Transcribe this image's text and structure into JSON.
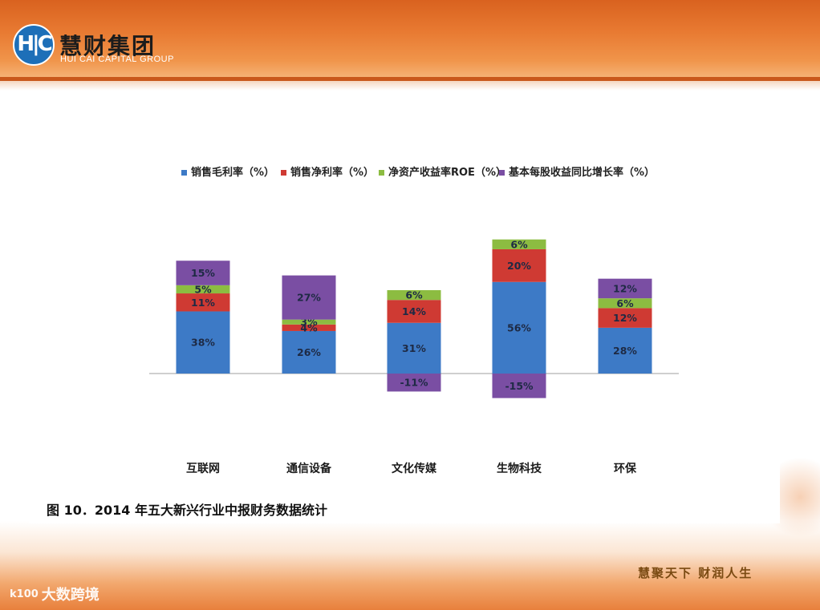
{
  "header": {
    "logo_letters": "H|C",
    "brand_cn": "慧财集团",
    "brand_en": "HUI CAI CAPITAL GROUP"
  },
  "colors": {
    "gross_margin": "#3d7ac6",
    "net_margin": "#cf3a33",
    "roe": "#8cbc41",
    "eps_growth": "#7a4ea3",
    "label_text": "#1e2a44",
    "axis": "#cfcfcf"
  },
  "chart_data": {
    "type": "bar",
    "stacked": true,
    "title": "",
    "xlabel": "",
    "ylabel": "",
    "legend_position": "top",
    "grid": false,
    "ylim": [
      -18,
      85
    ],
    "categories": [
      "互联网",
      "通信设备",
      "文化传媒",
      "生物科技",
      "环保"
    ],
    "series": [
      {
        "name": "销售毛利率（%）",
        "values": [
          38,
          26,
          31,
          56,
          28
        ],
        "labels": [
          "38%",
          "26%",
          "31%",
          "56%",
          "28%"
        ],
        "color_key": "gross_margin"
      },
      {
        "name": "销售净利率（%）",
        "values": [
          11,
          4,
          14,
          20,
          12
        ],
        "labels": [
          "11%",
          "4%",
          "14%",
          "20%",
          "12%"
        ],
        "color_key": "net_margin"
      },
      {
        "name": "净资产收益率ROE（%）",
        "values": [
          5,
          3,
          6,
          6,
          6
        ],
        "labels": [
          "5%",
          "3%",
          "6%",
          "6%",
          "6%"
        ],
        "color_key": "roe"
      },
      {
        "name": "基本每股收益同比增长率（%）",
        "values": [
          15,
          27,
          -11,
          -15,
          12
        ],
        "labels": [
          "15%",
          "27%",
          "-11%",
          "-15%",
          "12%"
        ],
        "color_key": "eps_growth"
      }
    ]
  },
  "caption": "图 10．2014 年五大新兴行业中报财务数据统计",
  "footer": {
    "slogan": "慧聚天下 财润人生",
    "watermark_icon": "k100",
    "watermark_text": "大数跨境"
  }
}
